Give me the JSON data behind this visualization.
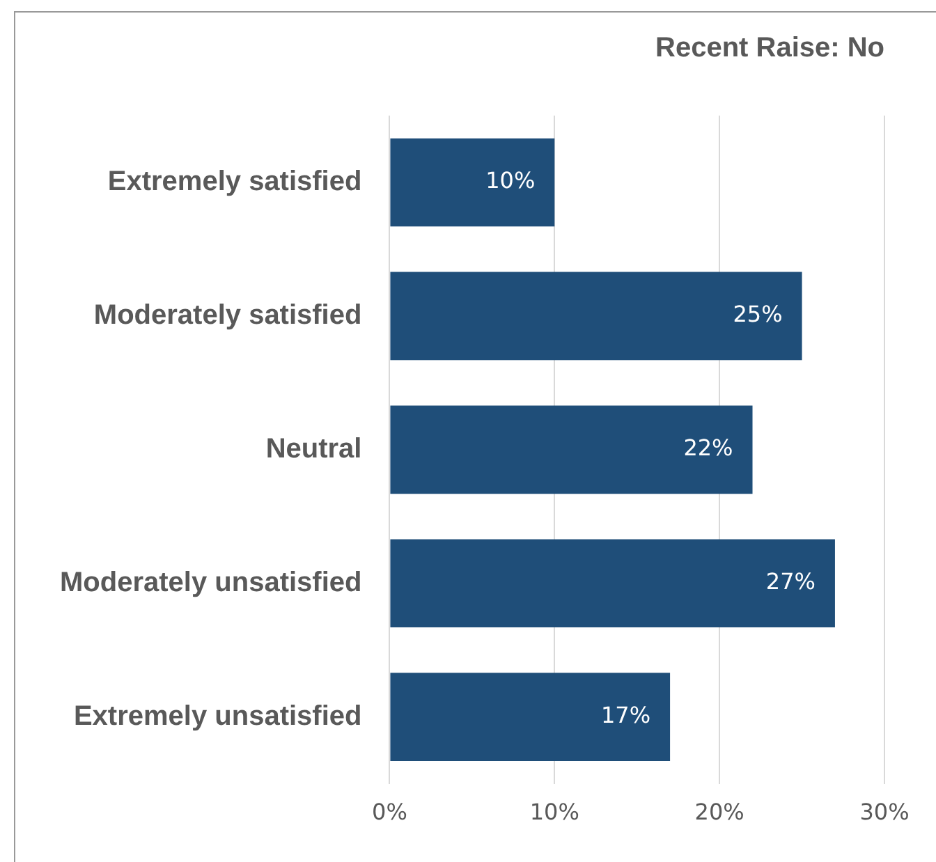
{
  "chart_data": {
    "type": "bar",
    "orientation": "horizontal",
    "title": "Recent Raise: No",
    "categories": [
      "Extremely satisfied",
      "Moderately satisfied",
      "Neutral",
      "Moderately unsatisfied",
      "Extremely unsatisfied"
    ],
    "values": [
      10,
      25,
      22,
      27,
      17
    ],
    "color": "#1f4e79",
    "value_labels": [
      "10%",
      "25%",
      "22%",
      "27%",
      "17%"
    ],
    "xlim": [
      0,
      30
    ],
    "xticks": [
      {
        "value": 0,
        "label": "0%"
      },
      {
        "value": 10,
        "label": "10%"
      },
      {
        "value": 20,
        "label": "20%"
      },
      {
        "value": 30,
        "label": "30%"
      }
    ],
    "grid": "x",
    "legend": false
  }
}
